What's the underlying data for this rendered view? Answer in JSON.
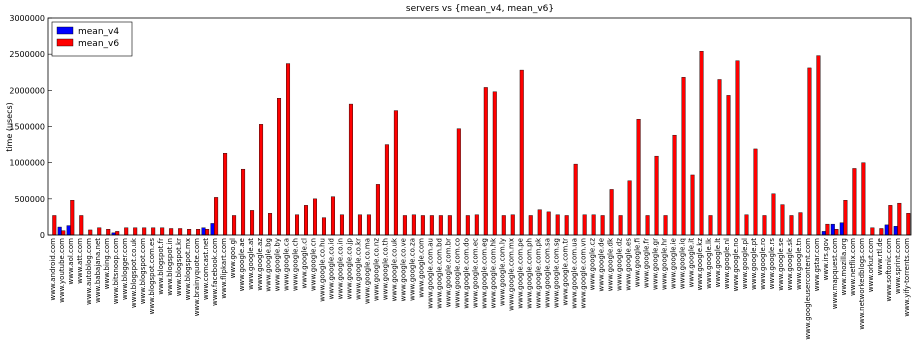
{
  "chart_data": {
    "type": "bar",
    "title": "servers vs {mean_v4, mean_v6}",
    "y_label": "time (usecs)",
    "categories": [
      "www.android.com",
      "www.youtube.com",
      "www.aol.com",
      "www.att.com",
      "www.autoblog.com",
      "www.babajana.net",
      "www.bing.com",
      "www.bitsnoop.com",
      "www.blogger.com",
      "www.blogspot.co.uk",
      "www.blogspot.com",
      "www.blogspot.com.es",
      "www.blogspot.fr",
      "www.blogspot.in",
      "www.blogspot.kr",
      "www.blogspot.mx",
      "www.brainyquote.com",
      "www.comcast.net",
      "www.facebook.com",
      "www.flipkart.com",
      "www.goo.gl",
      "www.google.ae",
      "www.google.at",
      "www.google.az",
      "www.google.bg",
      "www.google.by",
      "www.google.ca",
      "www.google.ch",
      "www.google.cl",
      "www.google.cn",
      "www.google.co.hu",
      "www.google.co.id",
      "www.google.co.in",
      "www.google.co.jp",
      "www.google.co.kr",
      "www.google.co.ma",
      "www.google.co.nz",
      "www.google.co.th",
      "www.google.co.uk",
      "www.google.co.ve",
      "www.google.co.za",
      "www.google.com",
      "www.google.com.au",
      "www.google.com.bd",
      "www.google.com.br",
      "www.google.com.co",
      "www.google.com.do",
      "www.google.com.ec",
      "www.google.com.eg",
      "www.google.com.hk",
      "www.google.com.ly",
      "www.google.com.mx",
      "www.google.com.pe",
      "www.google.com.ph",
      "www.google.com.pk",
      "www.google.com.sa",
      "www.google.com.sg",
      "www.google.com.tr",
      "www.google.com.ua",
      "www.google.com.vn",
      "www.google.cz",
      "www.google.de",
      "www.google.dk",
      "www.google.dz",
      "www.google.es",
      "www.google.fi",
      "www.google.fr",
      "www.google.gr",
      "www.google.hr",
      "www.google.ie",
      "www.google.iq",
      "www.google.it",
      "www.google.kz",
      "www.google.lk",
      "www.google.lt",
      "www.google.nl",
      "www.google.no",
      "www.google.pl",
      "www.google.pt",
      "www.google.ro",
      "www.google.rs",
      "www.google.se",
      "www.google.sk",
      "www.google.tn",
      "www.googleusercontent.com",
      "www.gstar.com",
      "www.irs.gov",
      "www.mapquest.com",
      "www.mozilla.org",
      "www.netflix.com",
      "www.networkedblogs.com",
      "www.orkut.com",
      "www.rtl.de",
      "www.softonic.com",
      "www.sprint.com",
      "www.yify-torrents.com"
    ],
    "series": [
      {
        "name": "mean_v4",
        "color": "#0000ff",
        "values": [
          0,
          110000,
          130000,
          0,
          0,
          0,
          0,
          30000,
          0,
          0,
          0,
          0,
          0,
          0,
          0,
          0,
          0,
          100000,
          160000,
          0,
          0,
          0,
          0,
          0,
          0,
          0,
          0,
          0,
          0,
          0,
          0,
          0,
          0,
          0,
          0,
          0,
          0,
          0,
          0,
          0,
          0,
          0,
          0,
          0,
          0,
          0,
          0,
          0,
          0,
          0,
          0,
          0,
          0,
          0,
          0,
          0,
          0,
          0,
          0,
          0,
          0,
          0,
          0,
          0,
          0,
          0,
          0,
          0,
          0,
          0,
          0,
          0,
          0,
          0,
          0,
          0,
          0,
          0,
          0,
          0,
          0,
          0,
          0,
          0,
          0,
          0,
          50000,
          150000,
          170000,
          0,
          0,
          0,
          0,
          140000,
          120000,
          0
        ]
      },
      {
        "name": "mean_v6",
        "color": "#ff0000",
        "values": [
          270000,
          60000,
          480000,
          270000,
          70000,
          100000,
          80000,
          50000,
          100000,
          100000,
          100000,
          100000,
          100000,
          90000,
          90000,
          80000,
          80000,
          80000,
          520000,
          1130000,
          270000,
          910000,
          340000,
          1530000,
          300000,
          1890000,
          2370000,
          280000,
          410000,
          500000,
          240000,
          530000,
          280000,
          1810000,
          280000,
          280000,
          700000,
          1250000,
          1720000,
          270000,
          280000,
          270000,
          270000,
          270000,
          270000,
          1470000,
          270000,
          280000,
          2040000,
          1980000,
          270000,
          280000,
          2280000,
          270000,
          350000,
          320000,
          280000,
          270000,
          980000,
          280000,
          280000,
          270000,
          630000,
          270000,
          750000,
          1600000,
          270000,
          1090000,
          270000,
          1380000,
          2180000,
          830000,
          2540000,
          270000,
          2150000,
          1930000,
          2410000,
          280000,
          1190000,
          270000,
          570000,
          420000,
          270000,
          310000,
          2310000,
          2480000,
          150000,
          80000,
          480000,
          920000,
          1000000,
          100000,
          90000,
          410000,
          440000,
          300000
        ]
      }
    ],
    "ylim": [
      0,
      3000000
    ],
    "yticks": [
      0,
      500000,
      1000000,
      1500000,
      2000000,
      2500000,
      3000000
    ],
    "grid": false,
    "legend": "upper-left"
  }
}
